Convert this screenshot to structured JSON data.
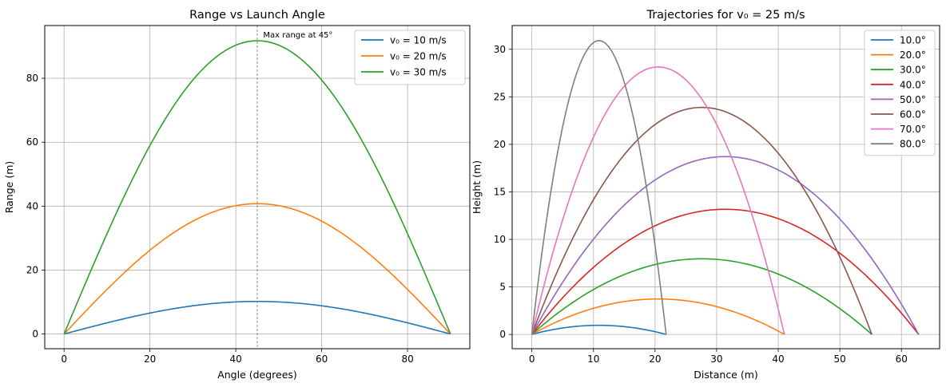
{
  "chart_data": [
    {
      "type": "line",
      "title": "Range vs Launch Angle",
      "xlabel": "Angle (degrees)",
      "ylabel": "Range (m)",
      "xlim": [
        -4.5,
        94.5
      ],
      "ylim": [
        -4.6,
        96.5
      ],
      "xticks": [
        0,
        20,
        40,
        60,
        80
      ],
      "yticks": [
        0,
        20,
        40,
        60,
        80
      ],
      "grid": true,
      "legend_position": "top-right",
      "series": [
        {
          "name": "v₀ = 10 m/s",
          "color": "#1f77b4",
          "x": [
            0,
            5,
            10,
            15,
            20,
            25,
            30,
            35,
            40,
            45,
            50,
            55,
            60,
            65,
            70,
            75,
            80,
            85,
            90
          ],
          "values": [
            0,
            1.77,
            3.49,
            5.1,
            6.55,
            7.81,
            8.83,
            9.58,
            10.04,
            10.19,
            10.04,
            9.58,
            8.83,
            7.81,
            6.55,
            5.1,
            3.49,
            1.77,
            0
          ]
        },
        {
          "name": "v₀ = 20 m/s",
          "color": "#ff7f0e",
          "x": [
            0,
            5,
            10,
            15,
            20,
            25,
            30,
            35,
            40,
            45,
            50,
            55,
            60,
            65,
            70,
            75,
            80,
            85,
            90
          ],
          "values": [
            0,
            7.08,
            13.95,
            20.39,
            26.21,
            31.23,
            35.31,
            38.31,
            40.16,
            40.77,
            40.16,
            38.31,
            35.31,
            31.23,
            26.21,
            20.39,
            13.95,
            7.08,
            0
          ]
        },
        {
          "name": "v₀ = 30 m/s",
          "color": "#2ca02c",
          "x": [
            0,
            5,
            10,
            15,
            20,
            25,
            30,
            35,
            40,
            45,
            50,
            55,
            60,
            65,
            70,
            75,
            80,
            85,
            90
          ],
          "values": [
            0,
            15.93,
            31.38,
            45.87,
            58.97,
            70.27,
            79.45,
            86.2,
            90.35,
            91.74,
            90.35,
            86.2,
            79.45,
            70.27,
            58.97,
            45.87,
            31.38,
            15.93,
            0
          ]
        }
      ],
      "reference_line": {
        "x": 45,
        "color": "#808080",
        "style": "dashed"
      },
      "annotation": {
        "text": "Max range at 45°",
        "x": 46,
        "y": 92
      }
    },
    {
      "type": "line",
      "title": "Trajectories for v₀ = 25 m/s",
      "xlabel": "Distance (m)",
      "ylabel": "Height (m)",
      "xlim": [
        -3.2,
        66.2
      ],
      "ylim": [
        -1.5,
        32.5
      ],
      "xticks": [
        0,
        10,
        20,
        30,
        40,
        50,
        60
      ],
      "yticks": [
        0,
        5,
        10,
        15,
        20,
        25,
        30
      ],
      "grid": true,
      "legend_position": "top-right",
      "series": [
        {
          "name": "10.0°",
          "color": "#1f77b4",
          "x_max": 21.8,
          "y_max": 0.96
        },
        {
          "name": "20.0°",
          "color": "#ff7f0e",
          "x_max": 41.0,
          "y_max": 3.73
        },
        {
          "name": "30.0°",
          "color": "#2ca02c",
          "x_max": 55.2,
          "y_max": 7.96
        },
        {
          "name": "40.0°",
          "color": "#d62728",
          "x_max": 62.8,
          "y_max": 13.17
        },
        {
          "name": "50.0°",
          "color": "#9467bd",
          "x_max": 62.8,
          "y_max": 18.71
        },
        {
          "name": "60.0°",
          "color": "#8c564b",
          "x_max": 55.2,
          "y_max": 23.89
        },
        {
          "name": "70.0°",
          "color": "#e377c2",
          "x_max": 41.0,
          "y_max": 28.14
        },
        {
          "name": "80.0°",
          "color": "#7f7f7f",
          "x_max": 21.8,
          "y_max": 30.91
        }
      ]
    }
  ]
}
